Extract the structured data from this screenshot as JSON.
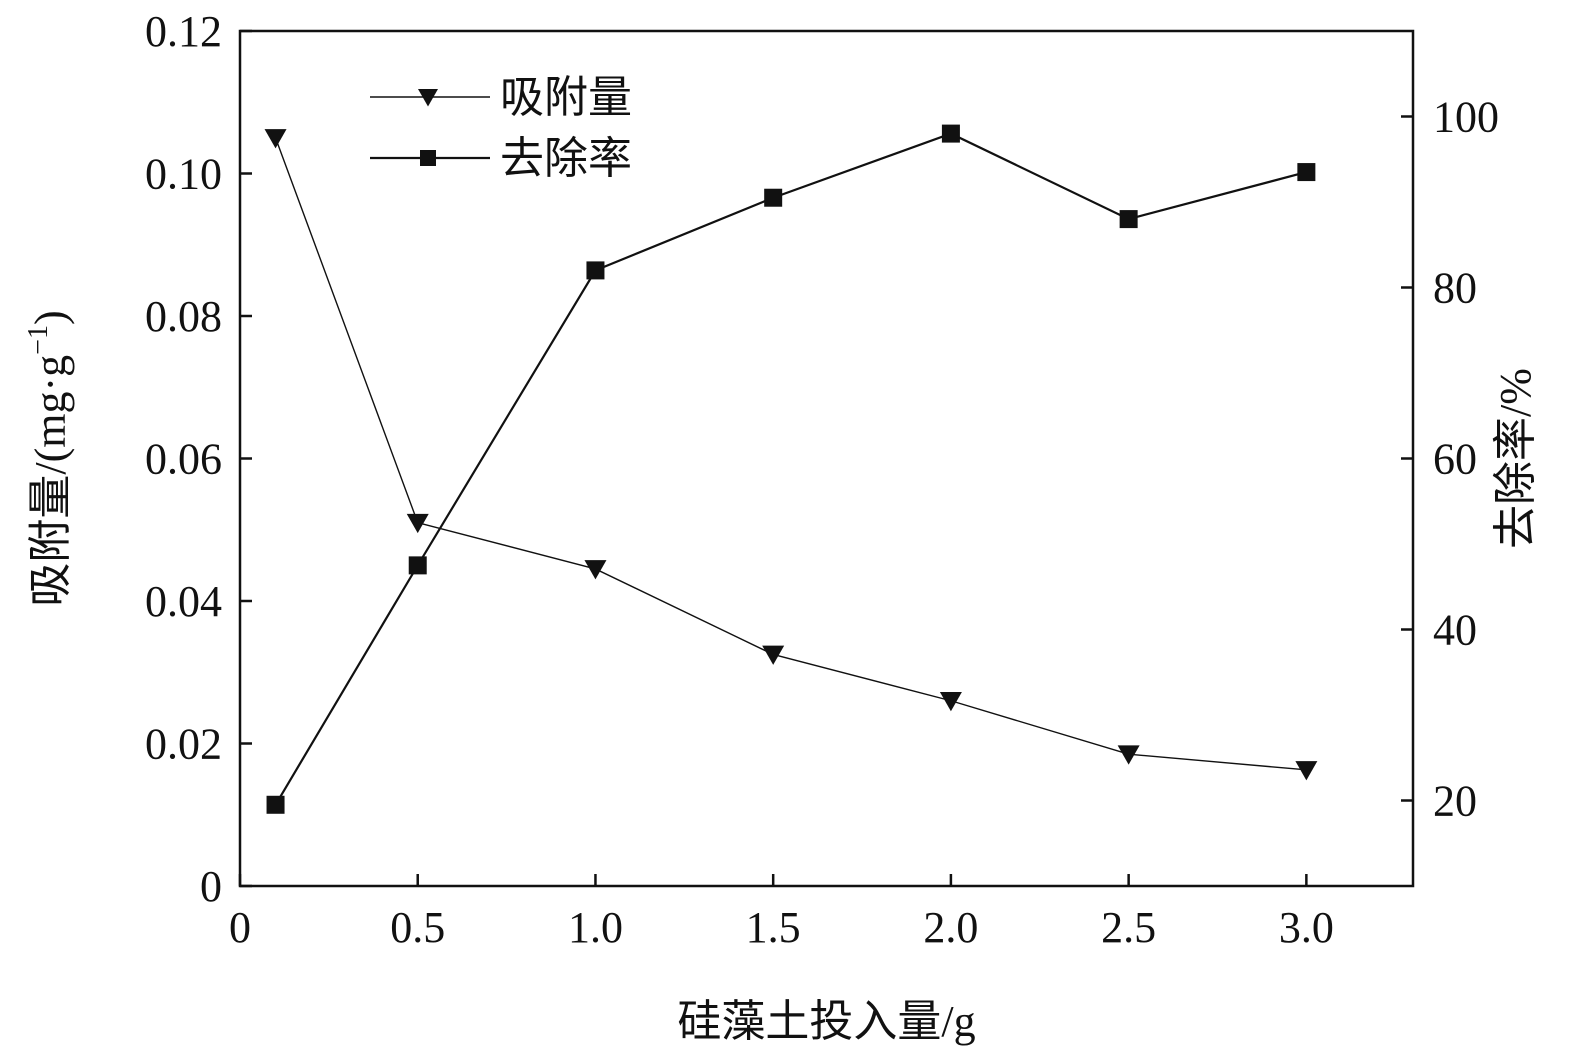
{
  "chart_data": {
    "type": "line",
    "x": [
      0.1,
      0.5,
      1.0,
      1.5,
      2.0,
      2.5,
      3.0
    ],
    "xlabel": "硅藻土投入量/g",
    "xlim": [
      0,
      3.3
    ],
    "xticks": [
      "0",
      "0.5",
      "1.0",
      "1.5",
      "2.0",
      "2.5",
      "3.0"
    ],
    "xtick_values": [
      0,
      0.5,
      1.0,
      1.5,
      2.0,
      2.5,
      3.0
    ],
    "y_left": {
      "label": "吸附量/(mg·g",
      "label_sup": "−1",
      "label_close": ")",
      "lim": [
        0,
        0.12
      ],
      "ticks": [
        "0",
        "0.02",
        "0.04",
        "0.06",
        "0.08",
        "0.10",
        "0.12"
      ],
      "tick_values": [
        0,
        0.02,
        0.04,
        0.06,
        0.08,
        0.1,
        0.12
      ]
    },
    "y_right": {
      "label": "去除率/%",
      "lim": [
        10,
        110
      ],
      "ticks": [
        "20",
        "40",
        "60",
        "80",
        "100"
      ],
      "tick_values": [
        20,
        40,
        60,
        80,
        100
      ]
    },
    "series": [
      {
        "name": "吸附量",
        "axis": "left",
        "marker": "triangle-down",
        "values": [
          0.105,
          0.051,
          0.0445,
          0.0325,
          0.026,
          0.0185,
          0.0163
        ]
      },
      {
        "name": "去除率",
        "axis": "right",
        "marker": "square",
        "values": [
          19.5,
          47.5,
          82.0,
          90.5,
          98.0,
          88.0,
          93.5
        ]
      }
    ],
    "legend_position": "top-left",
    "grid": false,
    "colors": {
      "line": "#111111",
      "marker": "#111111"
    }
  }
}
